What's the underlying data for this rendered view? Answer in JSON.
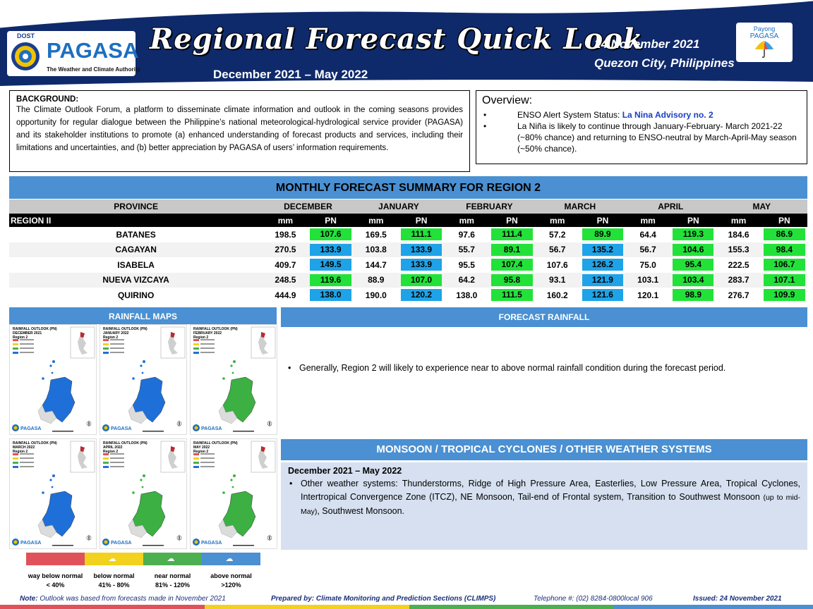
{
  "header": {
    "logo_dost": "DOST",
    "logo_name": "PAGASA",
    "logo_tagline": "The Weather and Climate Authority",
    "title": "Regional Forecast Quick Look",
    "period": "December 2021 – May 2022",
    "date": "24 November  2021",
    "place": "Quezon  City, Philippines",
    "payong_line1": "Payong",
    "payong_line2": "PAGASA",
    "colors": {
      "banner": "#0f2a6b",
      "accent": "#1d6fc1"
    }
  },
  "background": {
    "heading": "BACKGROUND:",
    "text": "The Climate Outlook Forum, a platform to disseminate climate information and outlook in the coming seasons provides opportunity for regular dialogue between the Philippine’s national meteorological-hydrological service provider (PAGASA) and its stakeholder institutions to promote (a) enhanced understanding of forecast products and services, including their limitations and uncertainties, and (b) better appreciation by PAGASA of users’ information requirements."
  },
  "overview": {
    "title": "Overview:",
    "enso_label": "ENSO Alert System Status: ",
    "enso_value": "La Nina Advisory no. 2",
    "la_nina_text": " La Niña is likely to continue through January-February- March 2021-22  (~80% chance) and returning to ENSO-neutral by March-April-May season (~50% chance)."
  },
  "table": {
    "title": "MONTHLY FORECAST SUMMARY FOR REGION 2",
    "province_header": "PROVINCE",
    "region_label": "REGION II",
    "months": [
      "DECEMBER",
      "JANUARY",
      "FEBRUARY",
      "MARCH",
      "APRIL",
      "MAY"
    ],
    "unit_mm": "mm",
    "unit_pn": "PN",
    "rows": [
      {
        "province": "BATANES",
        "cells": [
          {
            "mm": "198.5",
            "pn": "107.6",
            "cat": "green"
          },
          {
            "mm": "169.5",
            "pn": "111.1",
            "cat": "green"
          },
          {
            "mm": "97.6",
            "pn": "111.4",
            "cat": "green"
          },
          {
            "mm": "57.2",
            "pn": "89.9",
            "cat": "green"
          },
          {
            "mm": "64.4",
            "pn": "119.3",
            "cat": "green"
          },
          {
            "mm": "184.6",
            "pn": "86.9",
            "cat": "green"
          }
        ]
      },
      {
        "province": "CAGAYAN",
        "cells": [
          {
            "mm": "270.5",
            "pn": "133.9",
            "cat": "blue"
          },
          {
            "mm": "103.8",
            "pn": "133.9",
            "cat": "blue"
          },
          {
            "mm": "55.7",
            "pn": "89.1",
            "cat": "green"
          },
          {
            "mm": "56.7",
            "pn": "135.2",
            "cat": "blue"
          },
          {
            "mm": "56.7",
            "pn": "104.6",
            "cat": "green"
          },
          {
            "mm": "155.3",
            "pn": "98.4",
            "cat": "green"
          }
        ]
      },
      {
        "province": "ISABELA",
        "cells": [
          {
            "mm": "409.7",
            "pn": "149.5",
            "cat": "blue"
          },
          {
            "mm": "144.7",
            "pn": "133.9",
            "cat": "blue"
          },
          {
            "mm": "95.5",
            "pn": "107.4",
            "cat": "green"
          },
          {
            "mm": "107.6",
            "pn": "126.2",
            "cat": "blue"
          },
          {
            "mm": "75.0",
            "pn": "95.4",
            "cat": "green"
          },
          {
            "mm": "222.5",
            "pn": "106.7",
            "cat": "green"
          }
        ]
      },
      {
        "province": "NUEVA VIZCAYA",
        "cells": [
          {
            "mm": "248.5",
            "pn": "119.6",
            "cat": "green"
          },
          {
            "mm": "88.9",
            "pn": "107.0",
            "cat": "green"
          },
          {
            "mm": "64.2",
            "pn": "95.8",
            "cat": "green"
          },
          {
            "mm": "93.1",
            "pn": "121.9",
            "cat": "blue"
          },
          {
            "mm": "103.1",
            "pn": "103.4",
            "cat": "green"
          },
          {
            "mm": "283.7",
            "pn": "107.1",
            "cat": "green"
          }
        ]
      },
      {
        "province": "QUIRINO",
        "cells": [
          {
            "mm": "444.9",
            "pn": "138.0",
            "cat": "blue"
          },
          {
            "mm": "190.0",
            "pn": "120.2",
            "cat": "blue"
          },
          {
            "mm": "138.0",
            "pn": "111.5",
            "cat": "green"
          },
          {
            "mm": "160.2",
            "pn": "121.6",
            "cat": "blue"
          },
          {
            "mm": "120.1",
            "pn": "98.9",
            "cat": "green"
          },
          {
            "mm": "276.7",
            "pn": "109.9",
            "cat": "green"
          }
        ]
      }
    ],
    "colors": {
      "green": "#22e23a",
      "blue": "#1fa3e8"
    }
  },
  "rainfall_maps": {
    "title": "RAINFALL MAPS",
    "panels": [
      {
        "line1": "RAINFALL OUTLOOK (PN)",
        "line2": "DECEMBER 2021",
        "line3": "Region 2",
        "fill": "blue",
        "brand": "PAGASA"
      },
      {
        "line1": "RAINFALL OUTLOOK (PN)",
        "line2": "JANUARY 2022",
        "line3": "Region 2",
        "fill": "blue",
        "brand": "PAGASA"
      },
      {
        "line1": "RAINFALL OUTLOOK (PN)",
        "line2": "FEBRUARY 2022",
        "line3": "Region 2",
        "fill": "green",
        "brand": "PAGASA"
      },
      {
        "line1": "RAINFALL OUTLOOK (PN)",
        "line2": "MARCH 2022",
        "line3": "Region 2",
        "fill": "blue",
        "brand": "PAGASA"
      },
      {
        "line1": "RAINFALL OUTLOOK (PN)",
        "line2": "APRIL 2022",
        "line3": "Region 2",
        "fill": "green",
        "brand": "PAGASA"
      },
      {
        "line1": "RAINFALL OUTLOOK (PN)",
        "line2": "MAY 2022",
        "line3": "Region 2",
        "fill": "green",
        "brand": "PAGASA"
      }
    ],
    "legend": [
      {
        "label": "way below normal",
        "range": "< 40%",
        "color": "#e0525a"
      },
      {
        "label": "below normal",
        "range": "41%  -  80%",
        "color": "#f2d21e"
      },
      {
        "label": "near normal",
        "range": "81% - 120%",
        "color": "#4caf50"
      },
      {
        "label": "above normal",
        "range": ">120%",
        "color": "#4a90d2"
      }
    ]
  },
  "forecast_rainfall": {
    "title": "FORECAST RAINFALL",
    "text": "Generally, Region 2 will likely to experience near to above normal rainfall condition during the forecast period."
  },
  "monsoon": {
    "title": "MONSOON / TROPICAL CYCLONES / OTHER WEATHER SYSTEMS",
    "period": "December 2021 – May 2022",
    "text_a": "Other weather systems: Thunderstorms,  Ridge of High Pressure Area,  Easterlies, Low Pressure Area, Tropical Cyclones, Intertropical Convergence Zone (ITCZ), NE Monsoon, Tail-end of Frontal system, Transition to Southwest Monsoon ",
    "text_small": "(up to mid-May)",
    "text_b": ", Southwest Monsoon."
  },
  "footer": {
    "note_label": "Note:",
    "note_text": " Outlook was based from forecasts made in November 2021",
    "prepared": "Prepared by: Climate Monitoring and Prediction Sections (CLIMPS)",
    "telephone": "Telephone #: (02) 8284-0800local 906",
    "issued": "Issued: 24 November 2021"
  }
}
